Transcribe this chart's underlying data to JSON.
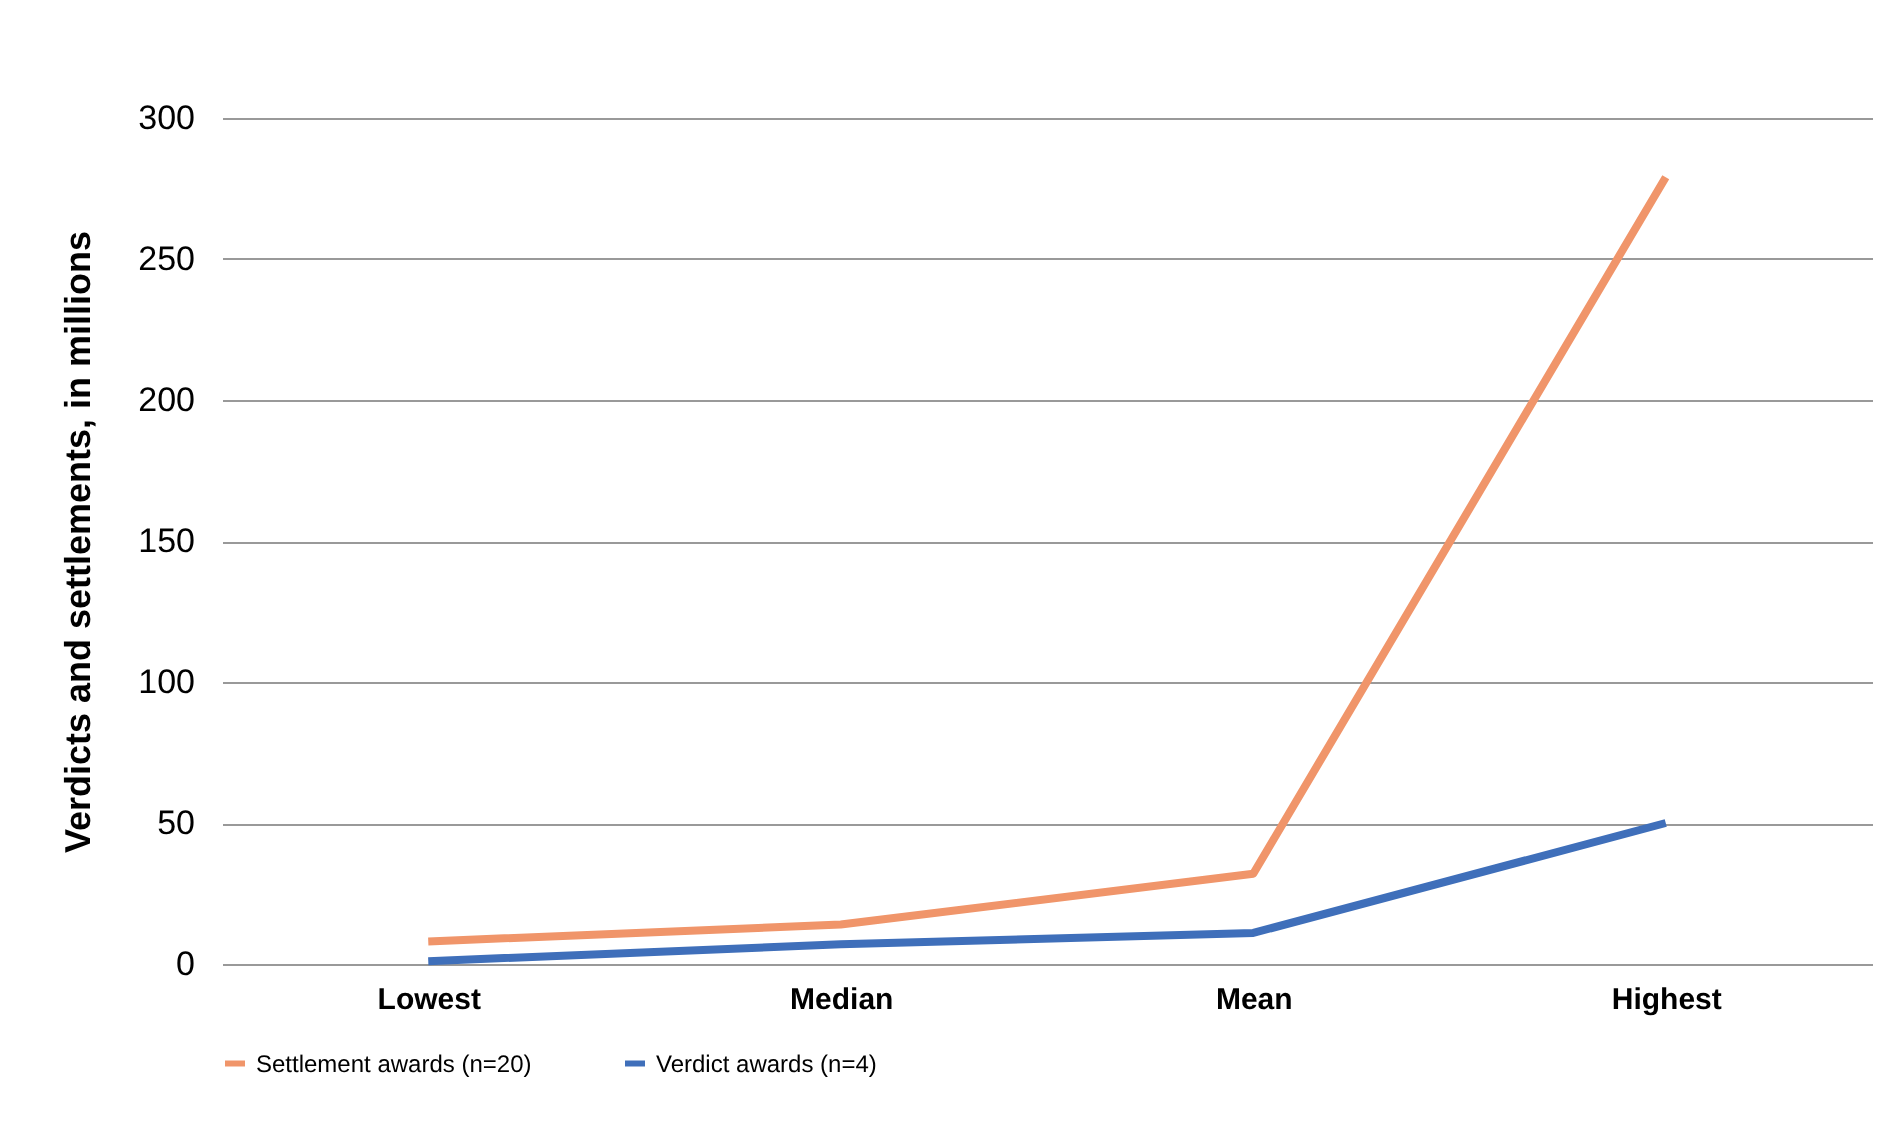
{
  "chart_data": {
    "type": "line",
    "ylabel": "Verdicts and settlements, in millions",
    "categories": [
      "Lowest",
      "Median",
      "Mean",
      "Highest"
    ],
    "series": [
      {
        "name": "Settlement awards (n=20)",
        "color": "#f0956a",
        "values": [
          8,
          14,
          32,
          279
        ]
      },
      {
        "name": "Verdict awards (n=4)",
        "color": "#3f6fba",
        "values": [
          1,
          7,
          11,
          50
        ]
      }
    ],
    "ylim": [
      0,
      300
    ],
    "yticks": [
      0,
      50,
      100,
      150,
      200,
      250,
      300
    ],
    "grid": "y",
    "legend": "bottom",
    "marker": "none",
    "line_style": "solid"
  }
}
